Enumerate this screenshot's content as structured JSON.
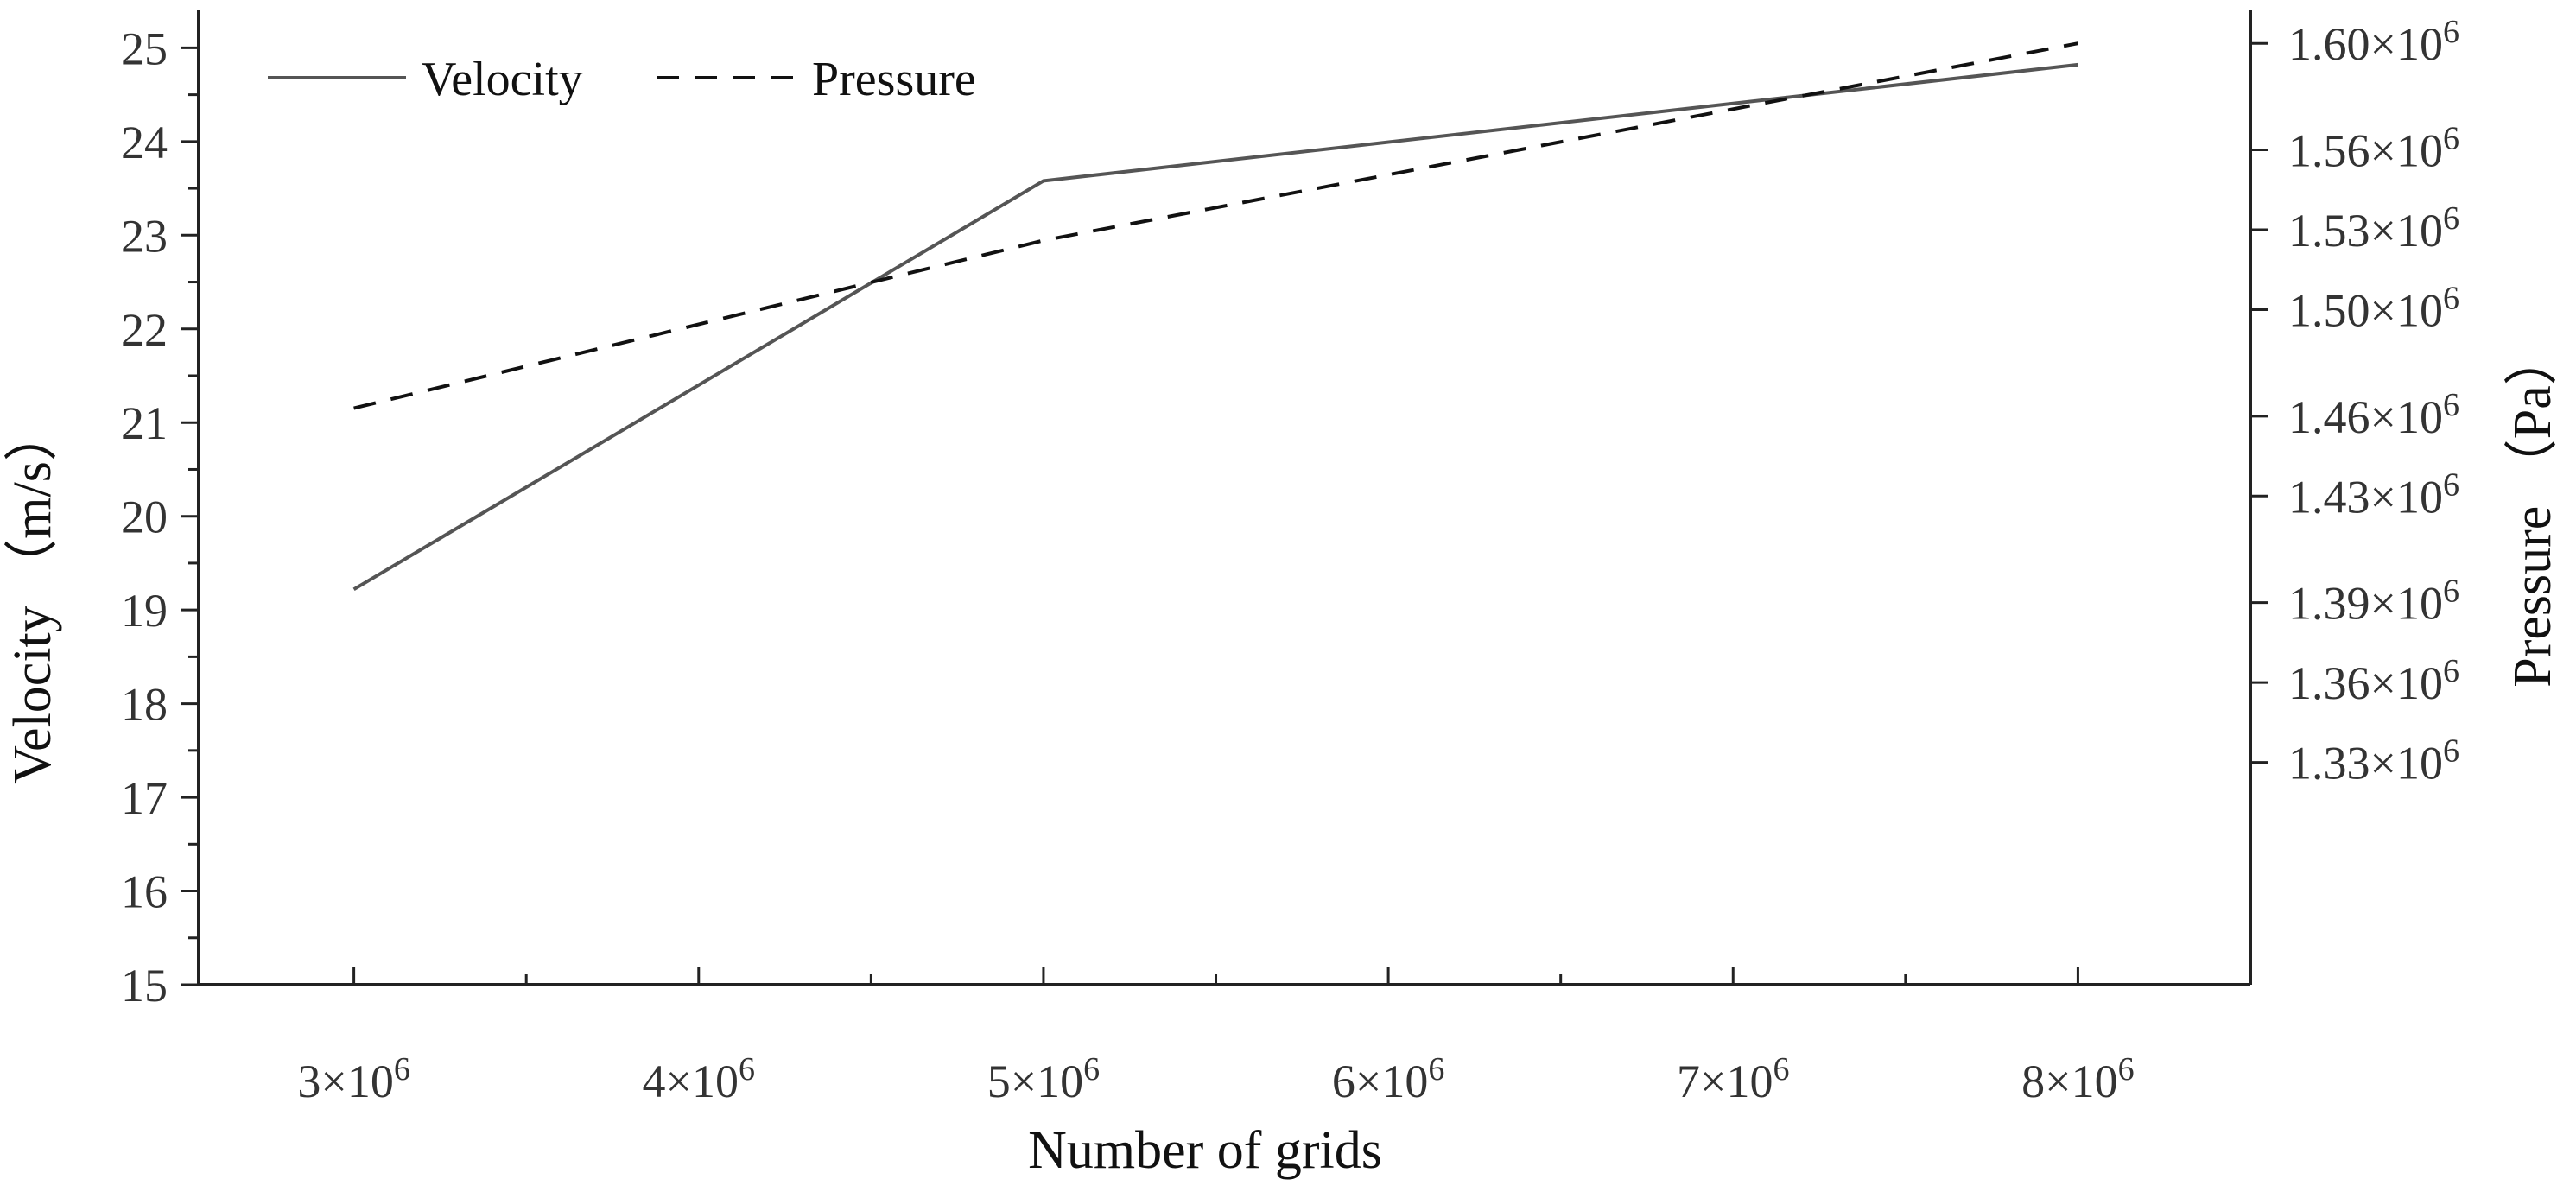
{
  "chart_data": {
    "type": "line",
    "title": "",
    "xlabel": "Number of grids",
    "ylabel": "Velocity （m/s）",
    "y2label": "Pressure （Pa）",
    "x_ticks": [
      {
        "value": 3000000,
        "mantissa": "3×10",
        "exp": "6"
      },
      {
        "value": 4000000,
        "mantissa": "4×10",
        "exp": "6"
      },
      {
        "value": 5000000,
        "mantissa": "5×10",
        "exp": "6"
      },
      {
        "value": 6000000,
        "mantissa": "6×10",
        "exp": "6"
      },
      {
        "value": 7000000,
        "mantissa": "7×10",
        "exp": "6"
      },
      {
        "value": 8000000,
        "mantissa": "8×10",
        "exp": "6"
      }
    ],
    "xlim": [
      2550000,
      8500000
    ],
    "ylim": [
      15,
      25.4
    ],
    "y_ticks": [
      "15",
      "16",
      "17",
      "18",
      "19",
      "20",
      "21",
      "22",
      "23",
      "24",
      "25"
    ],
    "y2lim": [
      1.2465,
      1.6124
    ],
    "y2_ticks": [
      {
        "value": 1.33,
        "mantissa": "1.33×10",
        "exp": "6"
      },
      {
        "value": 1.36,
        "mantissa": "1.36×10",
        "exp": "6"
      },
      {
        "value": 1.39,
        "mantissa": "1.39×10",
        "exp": "6"
      },
      {
        "value": 1.43,
        "mantissa": "1.43×10",
        "exp": "6"
      },
      {
        "value": 1.46,
        "mantissa": "1.46×10",
        "exp": "6"
      },
      {
        "value": 1.5,
        "mantissa": "1.50×10",
        "exp": "6"
      },
      {
        "value": 1.53,
        "mantissa": "1.53×10",
        "exp": "6"
      },
      {
        "value": 1.56,
        "mantissa": "1.56×10",
        "exp": "6"
      },
      {
        "value": 1.6,
        "mantissa": "1.60×10",
        "exp": "6"
      }
    ],
    "series": [
      {
        "name": "Velocity",
        "axis": "left",
        "style": "solid",
        "color": "#555555",
        "x": [
          3000000,
          5000000,
          8000000
        ],
        "values": [
          19.22,
          23.58,
          24.82
        ]
      },
      {
        "name": "Pressure",
        "axis": "right",
        "style": "dashed",
        "color": "#111111",
        "x": [
          3000000,
          5000000,
          8000000
        ],
        "values": [
          1.463,
          1.526,
          1.6
        ]
      }
    ],
    "legend_position": "top-left",
    "grid": false
  }
}
